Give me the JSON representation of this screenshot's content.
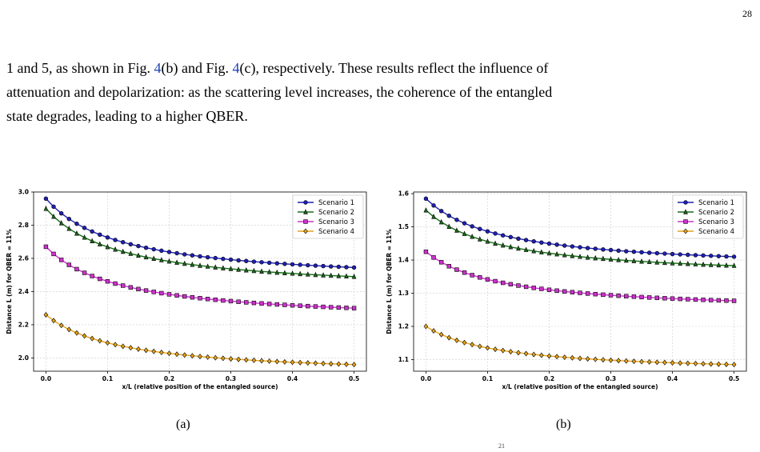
{
  "page_number": "28",
  "paragraph": {
    "line1_part1": "1 and 5, as shown in Fig. ",
    "line1_ref1": "4",
    "line1_part2": "(b) and Fig. ",
    "line1_ref2": "4",
    "line1_part3": "(c), respectively. These results reflect the influence of",
    "line2": "attenuation and depolarization: as the scattering level increases, the coherence of the entangled",
    "line3": "state degrades, leading to a higher QBER."
  },
  "captions": {
    "a": "(a)",
    "b": "(b)"
  },
  "footnote_mark": "21",
  "colors": {
    "scenario1": "#1f1fb4",
    "scenario2": "#1a6b1a",
    "scenario3": "#cc33cc",
    "scenario4": "#e6a31a",
    "grid": "#cccccc"
  },
  "chart_data": [
    {
      "type": "line",
      "xlabel": "x/L (relative position of the entangled source)",
      "ylabel": "Distance L (m) for QBER = 11%",
      "xlim": [
        -0.02,
        0.52
      ],
      "ylim": [
        1.92,
        3.0
      ],
      "xticks": [
        0.0,
        0.1,
        0.2,
        0.3,
        0.4,
        0.5
      ],
      "xtick_labels": [
        "0.0",
        "0.1",
        "0.2",
        "0.3",
        "0.4",
        "0.5"
      ],
      "yticks": [
        2.0,
        2.2,
        2.4,
        2.6,
        2.8,
        3.0
      ],
      "ytick_labels": [
        "2.0",
        "2.2",
        "2.4",
        "2.6",
        "2.8",
        "3.0"
      ],
      "grid": true,
      "legend": "top-right",
      "series": [
        {
          "name": "Scenario 1",
          "y0": 2.96,
          "yend": 2.545,
          "marker": "circle"
        },
        {
          "name": "Scenario 2",
          "y0": 2.9,
          "yend": 2.49,
          "marker": "triangle"
        },
        {
          "name": "Scenario 3",
          "y0": 2.67,
          "yend": 2.3,
          "marker": "square"
        },
        {
          "name": "Scenario 4",
          "y0": 2.26,
          "yend": 1.96,
          "marker": "diamond"
        }
      ]
    },
    {
      "type": "line",
      "xlabel": "x/L (relative position of the entangled source)",
      "ylabel": "Distance L (m) for QBER = 11%",
      "xlim": [
        -0.02,
        0.52
      ],
      "ylim": [
        1.065,
        1.605
      ],
      "xticks": [
        0.0,
        0.1,
        0.2,
        0.3,
        0.4,
        0.5
      ],
      "xtick_labels": [
        "0.0",
        "0.1",
        "0.2",
        "0.3",
        "0.4",
        "0.5"
      ],
      "yticks": [
        1.1,
        1.2,
        1.3,
        1.4,
        1.5,
        1.6
      ],
      "ytick_labels": [
        "1.1",
        "1.2",
        "1.3",
        "1.4",
        "1.5",
        "1.6"
      ],
      "grid": true,
      "legend": "top-right",
      "series": [
        {
          "name": "Scenario 1",
          "y0": 1.585,
          "yend": 1.41,
          "marker": "circle"
        },
        {
          "name": "Scenario 2",
          "y0": 1.55,
          "yend": 1.383,
          "marker": "triangle"
        },
        {
          "name": "Scenario 3",
          "y0": 1.425,
          "yend": 1.277,
          "marker": "square"
        },
        {
          "name": "Scenario 4",
          "y0": 1.2,
          "yend": 1.085,
          "marker": "diamond"
        }
      ]
    }
  ]
}
